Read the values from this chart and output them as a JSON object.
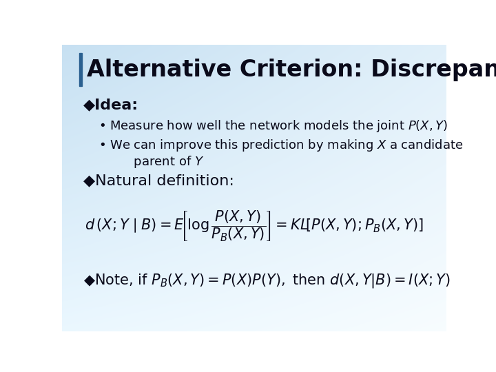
{
  "title": "Alternative Criterion: Discrepancy",
  "title_fontsize": 24,
  "title_color": "#0a0a1a",
  "title_bar_color": "#2a6090",
  "bullet1_main": "◆Idea:",
  "bullet1_sub1": "• Measure how well the network models the joint $P(X,Y)$",
  "bullet1_sub2a": "• We can improve this prediction by making $X$ a candidate",
  "bullet1_sub2b": "    parent of $Y$",
  "bullet2": "◆Natural definition:",
  "formula": "$d\\,(X;Y \\mid B) = E\\!\\left[\\log\\dfrac{P(X,Y)}{P_B(X,Y)}\\right] = KL\\!\\left[P(X,Y);P_B(X,Y)\\right]$",
  "bullet3": "◆Note, if $P_B(X,Y) = P(X)P(Y),$ then $d(X,Y|B) = I(X;Y)$",
  "text_color": "#0a0a1a",
  "bg_tl": [
    0.78,
    0.88,
    0.95
  ],
  "bg_tr": [
    0.88,
    0.94,
    0.98
  ],
  "bg_bl": [
    0.92,
    0.97,
    1.0
  ],
  "bg_br": [
    0.97,
    0.99,
    1.0
  ]
}
